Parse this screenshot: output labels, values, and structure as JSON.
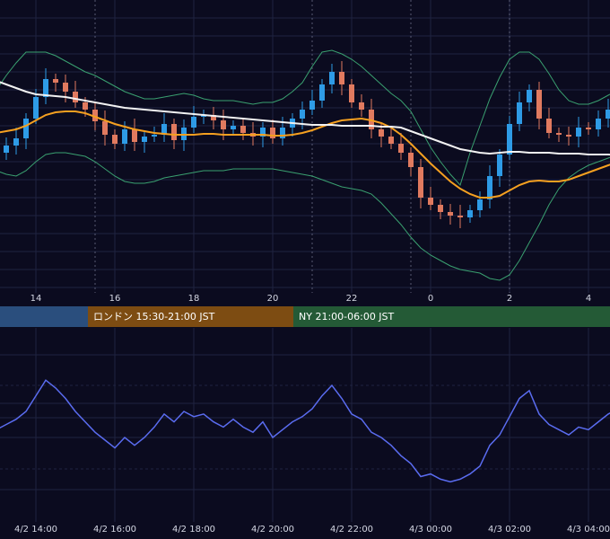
{
  "colors": {
    "background": "#0b0b1f",
    "grid": "#1f2340",
    "candle_up": "#2e9be6",
    "candle_down": "#e07a5f",
    "bollinger": "#3aa070",
    "ma_long": "#f2f2f2",
    "ma_short": "#f5a020",
    "oscillator": "#5a6cf0",
    "session_tokyo": "#2a4e7d",
    "session_london": "#7d4c12",
    "session_ny": "#245a36",
    "session_divider": "#8a8fa8"
  },
  "sessions": [
    {
      "label": "",
      "color_key": "session_tokyo"
    },
    {
      "label": "ロンドン 15:30-21:00 JST",
      "color_key": "session_london"
    },
    {
      "label": "NY 21:00-06:00 JST",
      "color_key": "session_ny"
    }
  ],
  "chart_data": [
    {
      "type": "candlestick",
      "title": "",
      "x_ticks": [
        "14",
        "16",
        "18",
        "20",
        "22",
        "0",
        "2",
        "4"
      ],
      "grid": true,
      "legend": "none",
      "series": [
        {
          "kind": "candles",
          "x": [
            "4/2 13:00",
            "4/2 13:15",
            "4/2 13:30",
            "4/2 13:45",
            "4/2 14:00",
            "4/2 14:15",
            "4/2 14:30",
            "4/2 14:45",
            "4/2 15:00",
            "4/2 15:15",
            "4/2 15:30",
            "4/2 15:45",
            "4/2 16:00",
            "4/2 16:15",
            "4/2 16:30",
            "4/2 16:45",
            "4/2 17:00",
            "4/2 17:15",
            "4/2 17:30",
            "4/2 17:45",
            "4/2 18:00",
            "4/2 18:15",
            "4/2 18:30",
            "4/2 18:45",
            "4/2 19:00",
            "4/2 19:15",
            "4/2 19:30",
            "4/2 19:45",
            "4/2 20:00",
            "4/2 20:15",
            "4/2 20:30",
            "4/2 20:45",
            "4/2 21:00",
            "4/2 21:15",
            "4/2 21:30",
            "4/2 21:45",
            "4/2 22:00",
            "4/2 22:15",
            "4/2 22:30",
            "4/2 22:45",
            "4/2 23:00",
            "4/2 23:15",
            "4/2 23:30",
            "4/2 23:45",
            "4/3 00:00",
            "4/3 00:15",
            "4/3 00:30",
            "4/3 00:45",
            "4/3 01:00",
            "4/3 01:15",
            "4/3 01:30",
            "4/3 01:45",
            "4/3 02:00",
            "4/3 02:15",
            "4/3 02:30",
            "4/3 02:45",
            "4/3 03:00",
            "4/3 03:15",
            "4/3 03:30",
            "4/3 03:45",
            "4/3 04:00",
            "4/3 04:15",
            "4/3 04:30",
            "4/3 04:45",
            "4/3 05:00"
          ],
          "close": [
            150,
            158,
            166,
            188,
            212,
            232,
            228,
            218,
            206,
            198,
            185,
            170,
            160,
            176,
            162,
            168,
            170,
            182,
            164,
            178,
            190,
            192,
            186,
            176,
            180,
            172,
            168,
            178,
            166,
            178,
            188,
            198,
            208,
            226,
            240,
            226,
            206,
            198,
            176,
            168,
            160,
            150,
            134,
            100,
            92,
            84,
            80,
            78,
            86,
            98,
            124,
            148,
            182,
            206,
            220,
            188,
            172,
            170,
            168,
            178,
            176,
            188,
            198,
            206,
            212
          ],
          "up_color_key": "candle_up",
          "down_color_key": "candle_down"
        },
        {
          "kind": "line",
          "name": "",
          "color_key": "ma_long",
          "values": [
            230,
            226,
            222,
            218,
            215,
            214,
            213,
            212,
            210,
            208,
            206,
            204,
            202,
            200,
            199,
            198,
            197,
            196,
            195,
            194,
            193,
            192,
            191,
            190,
            189,
            188,
            187,
            186,
            185,
            184,
            183,
            182,
            181,
            181,
            181,
            180,
            180,
            180,
            180,
            179,
            179,
            178,
            174,
            170,
            166,
            162,
            158,
            154,
            152,
            150,
            149,
            150,
            151,
            151,
            150,
            150,
            150,
            149,
            149,
            149,
            148,
            148,
            148,
            147,
            147
          ]
        },
        {
          "kind": "line",
          "name": "",
          "color_key": "ma_short",
          "values": [
            172,
            174,
            176,
            180,
            186,
            192,
            195,
            196,
            196,
            194,
            190,
            186,
            182,
            179,
            176,
            174,
            172,
            171,
            170,
            170,
            170,
            171,
            171,
            170,
            170,
            170,
            170,
            170,
            169,
            169,
            170,
            172,
            175,
            179,
            183,
            186,
            187,
            188,
            186,
            183,
            178,
            170,
            160,
            149,
            138,
            128,
            118,
            110,
            104,
            100,
            100,
            102,
            108,
            114,
            118,
            119,
            118,
            118,
            120,
            124,
            128,
            132,
            136,
            140,
            146
          ]
        },
        {
          "kind": "band",
          "name": "",
          "color_key": "bollinger",
          "upper": [
            220,
            236,
            250,
            262,
            262,
            262,
            258,
            252,
            246,
            240,
            236,
            230,
            224,
            218,
            214,
            210,
            210,
            212,
            214,
            216,
            214,
            210,
            208,
            208,
            208,
            206,
            204,
            206,
            206,
            210,
            218,
            228,
            246,
            262,
            264,
            260,
            254,
            246,
            236,
            226,
            216,
            208,
            196,
            176,
            156,
            140,
            126,
            114,
            150,
            180,
            210,
            234,
            254,
            262,
            262,
            254,
            238,
            220,
            208,
            204,
            204,
            208,
            214,
            220,
            226
          ],
          "lower": [
            130,
            126,
            124,
            130,
            140,
            148,
            150,
            150,
            148,
            146,
            140,
            132,
            124,
            118,
            116,
            116,
            118,
            122,
            124,
            126,
            128,
            130,
            130,
            130,
            132,
            132,
            132,
            132,
            132,
            130,
            128,
            126,
            124,
            120,
            116,
            112,
            110,
            108,
            104,
            94,
            82,
            70,
            56,
            44,
            36,
            30,
            24,
            20,
            18,
            16,
            10,
            8,
            14,
            30,
            50,
            70,
            92,
            110,
            122,
            130,
            136,
            140,
            144,
            148,
            152
          ]
        }
      ]
    },
    {
      "type": "line",
      "title": "",
      "x_ticks": [
        "4/2 14:00",
        "4/2 16:00",
        "4/2 18:00",
        "4/2 20:00",
        "4/2 22:00",
        "4/3 00:00",
        "4/3 02:00",
        "4/3 04:00"
      ],
      "grid": true,
      "legend": "none",
      "series": [
        {
          "name": "",
          "color_key": "oscillator",
          "values": [
            46,
            50,
            54,
            60,
            72,
            84,
            78,
            70,
            60,
            52,
            44,
            38,
            32,
            40,
            34,
            40,
            48,
            58,
            52,
            60,
            56,
            58,
            52,
            48,
            54,
            48,
            44,
            52,
            40,
            46,
            52,
            56,
            62,
            72,
            80,
            70,
            58,
            54,
            44,
            40,
            34,
            26,
            20,
            10,
            12,
            8,
            6,
            8,
            12,
            18,
            34,
            42,
            56,
            70,
            76,
            58,
            50,
            46,
            42,
            48,
            46,
            52,
            58,
            62,
            64
          ]
        }
      ]
    }
  ]
}
